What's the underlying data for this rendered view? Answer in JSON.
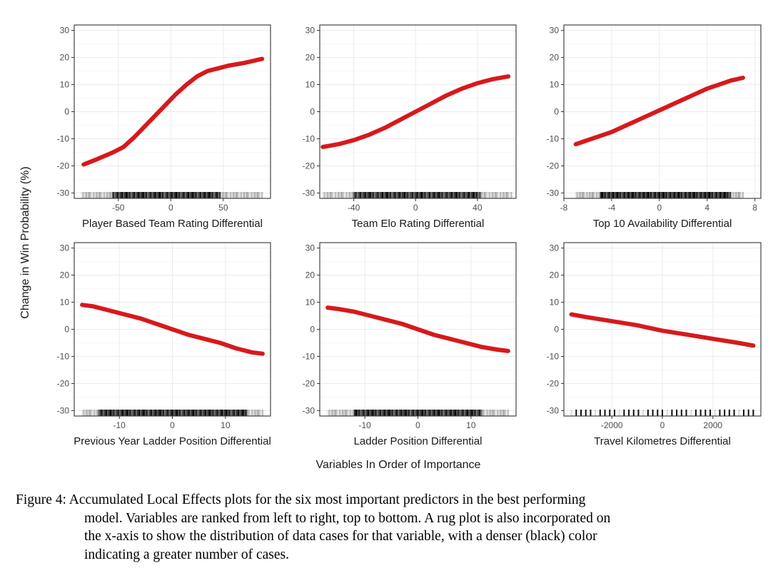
{
  "figure": {
    "y_axis_title": "Change in Win Probability (%)",
    "x_axis_title": "Variables In Order of Importance",
    "colors": {
      "curve": "#d7191c",
      "rug": "#000000",
      "grid": "#ebebeb",
      "border": "#333333"
    }
  },
  "caption": {
    "lines": [
      "Figure 4: Accumulated Local Effects plots for the six most important predictors in the best performing",
      "model. Variables are ranked from left to right, top to bottom. A rug plot is also incorporated on",
      "the x-axis to show the distribution of data cases for that variable, with a denser (black) color",
      "indicating a greater number of cases."
    ]
  },
  "chart_data": [
    {
      "type": "line",
      "xlabel": "Player Based Team Rating Differential",
      "ylabel": "Change in Win Probability (%)",
      "xlim": [
        -92,
        95
      ],
      "ylim": [
        -32,
        32
      ],
      "xticks": [
        -50,
        0,
        50
      ],
      "yticks": [
        -30,
        -20,
        -10,
        0,
        10,
        20,
        30
      ],
      "x": [
        -83,
        -70,
        -55,
        -45,
        -35,
        -25,
        -15,
        -5,
        5,
        15,
        25,
        35,
        45,
        55,
        70,
        87
      ],
      "y": [
        -19.5,
        -17.5,
        -15,
        -13,
        -9.5,
        -5.5,
        -1.5,
        2.5,
        6.5,
        10,
        13,
        15,
        16,
        17,
        18,
        19.5
      ],
      "rug": {
        "range": [
          -85,
          87
        ],
        "dense": [
          -55,
          48
        ]
      }
    },
    {
      "type": "line",
      "xlabel": "Team Elo Rating Differential",
      "ylabel": "Change in Win Probability (%)",
      "xlim": [
        -62,
        65
      ],
      "ylim": [
        -32,
        32
      ],
      "xticks": [
        -40,
        0,
        40
      ],
      "yticks": [
        -30,
        -20,
        -10,
        0,
        10,
        20,
        30
      ],
      "x": [
        -60,
        -50,
        -40,
        -30,
        -20,
        -10,
        0,
        10,
        20,
        30,
        40,
        50,
        60
      ],
      "y": [
        -13,
        -12,
        -10.5,
        -8.5,
        -6,
        -3,
        0,
        3,
        6,
        8.5,
        10.5,
        12,
        13
      ],
      "rug": {
        "range": [
          -60,
          62
        ],
        "dense": [
          -40,
          42
        ]
      }
    },
    {
      "type": "line",
      "xlabel": "Top 10 Availability Differential",
      "ylabel": "Change in Win Probability (%)",
      "xlim": [
        -8,
        8.5
      ],
      "ylim": [
        -32,
        32
      ],
      "xticks": [
        -8,
        -4,
        0,
        4,
        8
      ],
      "yticks": [
        -30,
        -20,
        -10,
        0,
        10,
        20,
        30
      ],
      "x": [
        -7,
        -6,
        -5,
        -4,
        -3,
        -2,
        -1,
        0,
        1,
        2,
        3,
        4,
        5,
        6,
        7
      ],
      "y": [
        -12,
        -10.5,
        -9,
        -7.5,
        -5.5,
        -3.5,
        -1.5,
        0.5,
        2.5,
        4.5,
        6.5,
        8.5,
        10,
        11.5,
        12.5
      ],
      "rug": {
        "range": [
          -7,
          7
        ],
        "dense": [
          -5,
          6
        ],
        "step": 0.5
      }
    },
    {
      "type": "line",
      "xlabel": "Previous Year Ladder Position Differential",
      "ylabel": "Change in Win Probability (%)",
      "xlim": [
        -18.5,
        18.5
      ],
      "ylim": [
        -32,
        32
      ],
      "xticks": [
        -10,
        0,
        10
      ],
      "yticks": [
        -30,
        -20,
        -10,
        0,
        10,
        20,
        30
      ],
      "x": [
        -17,
        -15,
        -12,
        -9,
        -6,
        -3,
        0,
        3,
        6,
        9,
        12,
        15,
        17
      ],
      "y": [
        9,
        8.5,
        7,
        5.5,
        4,
        2,
        0,
        -2,
        -3.5,
        -5,
        -7,
        -8.5,
        -9
      ],
      "rug": {
        "range": [
          -17,
          17
        ],
        "dense": [
          -14,
          14
        ]
      }
    },
    {
      "type": "line",
      "xlabel": "Ladder Position Differential",
      "ylabel": "Change in Win Probability (%)",
      "xlim": [
        -18.5,
        18.5
      ],
      "ylim": [
        -32,
        32
      ],
      "xticks": [
        -10,
        0,
        10
      ],
      "yticks": [
        -30,
        -20,
        -10,
        0,
        10,
        20,
        30
      ],
      "x": [
        -17,
        -15,
        -12,
        -9,
        -6,
        -3,
        0,
        3,
        6,
        9,
        12,
        15,
        17
      ],
      "y": [
        8,
        7.5,
        6.5,
        5,
        3.5,
        2,
        0,
        -2,
        -3.5,
        -5,
        -6.5,
        -7.5,
        -8
      ],
      "rug": {
        "range": [
          -17,
          17
        ],
        "dense": [
          -12,
          12
        ]
      }
    },
    {
      "type": "line",
      "xlabel": "Travel Kilometres Differential",
      "ylabel": "Change in Win Probability (%)",
      "xlim": [
        -3900,
        3900
      ],
      "ylim": [
        -32,
        32
      ],
      "xticks": [
        -2000,
        0,
        2000
      ],
      "yticks": [
        -30,
        -20,
        -10,
        0,
        10,
        20,
        30
      ],
      "x": [
        -3600,
        -3000,
        -2000,
        -1000,
        0,
        1000,
        2000,
        3000,
        3600
      ],
      "y": [
        5.5,
        4.5,
        3,
        1.5,
        -0.5,
        -2,
        -3.5,
        -5,
        -6
      ],
      "rug": {
        "range": [
          -3600,
          3600
        ],
        "dense": [
          -1500,
          1500
        ],
        "sparse": true
      }
    }
  ]
}
